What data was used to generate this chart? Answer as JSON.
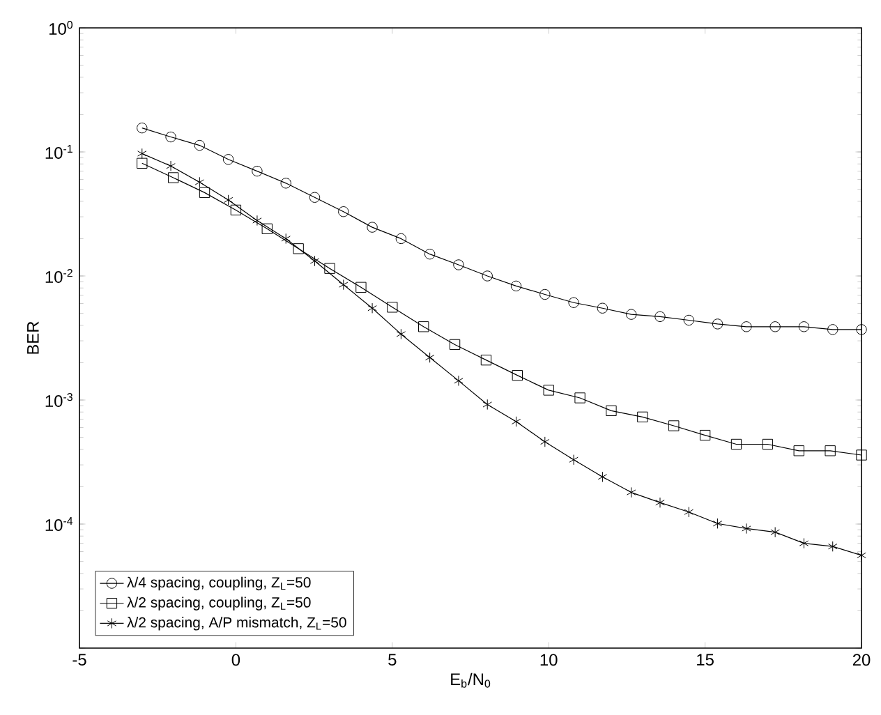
{
  "chart_data": {
    "type": "line",
    "xlabel": "E$_{b}$/N$_{0}$",
    "ylabel": "BER",
    "log": "y",
    "xlim": [
      -5,
      20
    ],
    "xticks": [
      -5,
      0,
      5,
      10,
      15,
      20
    ],
    "ylim": [
      1e-05,
      1
    ],
    "yticks": [
      {
        "value": 1e-05,
        "label": null
      },
      {
        "value": 0.0001,
        "label": "10$^{-4}$"
      },
      {
        "value": 0.001,
        "label": "10$^{-3}$"
      },
      {
        "value": 0.01,
        "label": "10$^{-2}$"
      },
      {
        "value": 0.1,
        "label": "10$^{-1}$"
      },
      {
        "value": 1,
        "label": "10$^{0}$"
      }
    ],
    "legend": "bottom left",
    "grid": false,
    "line_style": "solid",
    "series": [
      {
        "name": "λ/4 spacing, coupling, Z$_{L}$=50",
        "color": "#000000",
        "marker": "circle",
        "x": [
          -3,
          -2.08,
          -1.16,
          -0.24,
          0.68,
          1.6,
          2.52,
          3.44,
          4.36,
          5.28,
          6.2,
          7.12,
          8.04,
          8.96,
          9.88,
          10.8,
          11.72,
          12.64,
          13.56,
          14.48,
          15.4,
          16.32,
          17.24,
          18.16,
          19.08,
          20
        ],
        "values": [
          0.156,
          0.132,
          0.113,
          0.087,
          0.07,
          0.056,
          0.043,
          0.033,
          0.0247,
          0.02,
          0.015,
          0.0123,
          0.01,
          0.0083,
          0.0071,
          0.0061,
          0.0055,
          0.0049,
          0.0047,
          0.0044,
          0.0041,
          0.0039,
          0.0039,
          0.0039,
          0.0037,
          0.0037
        ]
      },
      {
        "name": "λ/2 spacing, coupling, Z$_{L}$=50",
        "color": "#000000",
        "marker": "square",
        "x": [
          -3,
          -2,
          -1,
          0,
          1,
          2,
          3,
          4,
          5,
          6,
          7,
          8,
          9,
          10,
          11,
          12,
          13,
          14,
          15,
          16,
          17,
          18,
          19,
          20
        ],
        "values": [
          0.081,
          0.062,
          0.047,
          0.034,
          0.024,
          0.0166,
          0.0115,
          0.0081,
          0.0056,
          0.0039,
          0.0028,
          0.0021,
          0.00158,
          0.0012,
          0.00104,
          0.00082,
          0.00073,
          0.00062,
          0.00052,
          0.00044,
          0.00044,
          0.00039,
          0.00039,
          0.00036
        ]
      },
      {
        "name": "λ/2 spacing, A/P mismatch, Z$_{L}$=50",
        "color": "#000000",
        "marker": "cross",
        "x": [
          -3,
          -2.08,
          -1.16,
          -0.24,
          0.68,
          1.6,
          2.52,
          3.44,
          4.36,
          5.28,
          6.2,
          7.12,
          8.04,
          8.96,
          9.88,
          10.8,
          11.72,
          12.64,
          13.56,
          14.48,
          15.4,
          16.32,
          17.24,
          18.16,
          19.08,
          20
        ],
        "values": [
          0.097,
          0.077,
          0.057,
          0.041,
          0.028,
          0.02,
          0.0132,
          0.0085,
          0.0055,
          0.0034,
          0.0022,
          0.00143,
          0.00092,
          0.00067,
          0.00046,
          0.00033,
          0.00024,
          0.00018,
          0.000149,
          0.000125,
          0.000101,
          9.2e-05,
          8.6e-05,
          7e-05,
          6.6e-05,
          5.6e-05
        ]
      }
    ]
  }
}
